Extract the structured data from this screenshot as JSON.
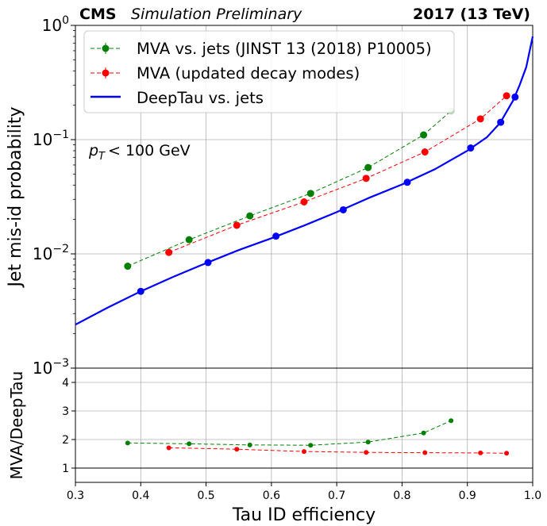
{
  "header": {
    "cms": "CMS",
    "status": "Simulation Preliminary",
    "energy": "2017 (13 TeV)"
  },
  "annotation": {
    "pt_symbol": "p",
    "pt_sub": "T",
    "pt_cut": "< 100 GeV"
  },
  "chart_data": [
    {
      "type": "line",
      "panel": "main",
      "xlabel": "",
      "ylabel": "Jet mis-id probability",
      "xlim": [
        0.3,
        1.0
      ],
      "ylim": [
        0.001,
        1.0
      ],
      "yscale": "log",
      "grid": true,
      "legend_position": "top-left",
      "y_ticks": [
        {
          "value": 1.0,
          "label": "10",
          "exp": "0"
        },
        {
          "value": 0.1,
          "label": "10",
          "exp": "−1"
        },
        {
          "value": 0.01,
          "label": "10",
          "exp": "−2"
        },
        {
          "value": 0.001,
          "label": "10",
          "exp": "−3"
        }
      ],
      "series": [
        {
          "name": "MVA vs. jets (JINST 13 (2018) P10005)",
          "color": "#008000",
          "style": "dashed-markers",
          "x": [
            0.38,
            0.474,
            0.567,
            0.66,
            0.748,
            0.833,
            0.875
          ],
          "y": [
            0.0078,
            0.0133,
            0.0215,
            0.0338,
            0.057,
            0.11,
            0.178
          ]
        },
        {
          "name": "MVA (updated decay modes)",
          "color": "#ff0000",
          "style": "dashed-markers",
          "x": [
            0.443,
            0.547,
            0.65,
            0.745,
            0.835,
            0.92,
            0.96
          ],
          "y": [
            0.0103,
            0.0178,
            0.0285,
            0.0458,
            0.078,
            0.152,
            0.242
          ]
        },
        {
          "name": "DeepTau vs. jets",
          "color": "#0000ff",
          "style": "solid",
          "x": [
            0.3,
            0.35,
            0.4,
            0.45,
            0.5,
            0.55,
            0.6,
            0.65,
            0.7,
            0.75,
            0.8,
            0.85,
            0.9,
            0.93,
            0.95,
            0.97,
            0.98,
            0.99,
            1.0
          ],
          "y": [
            0.0024,
            0.0034,
            0.0047,
            0.0063,
            0.0083,
            0.0108,
            0.0137,
            0.0177,
            0.0232,
            0.031,
            0.0405,
            0.055,
            0.08,
            0.105,
            0.14,
            0.22,
            0.3,
            0.43,
            0.8
          ],
          "markers_x": [
            0.4,
            0.503,
            0.607,
            0.71,
            0.808,
            0.905,
            0.951,
            0.973
          ],
          "markers_y": [
            0.0047,
            0.0084,
            0.0143,
            0.0243,
            0.0423,
            0.0845,
            0.142,
            0.236
          ]
        }
      ]
    },
    {
      "type": "line",
      "panel": "ratio",
      "xlabel": "Tau ID efficiency",
      "ylabel": "MVA/DeepTau",
      "xlim": [
        0.3,
        1.0
      ],
      "ylim": [
        0.5,
        4.5
      ],
      "grid": true,
      "x_ticks": [
        "0.3",
        "0.4",
        "0.5",
        "0.6",
        "0.7",
        "0.8",
        "0.9",
        "1.0"
      ],
      "y_ticks": [
        "1",
        "2",
        "3",
        "4"
      ],
      "reference_line": 1,
      "series": [
        {
          "name": "MVA vs. jets (JINST 13 (2018) P10005)",
          "color": "#008000",
          "x": [
            0.38,
            0.474,
            0.567,
            0.66,
            0.748,
            0.833,
            0.875
          ],
          "y": [
            1.88,
            1.85,
            1.81,
            1.8,
            1.91,
            2.23,
            2.66
          ]
        },
        {
          "name": "MVA (updated decay modes)",
          "color": "#ff0000",
          "x": [
            0.443,
            0.547,
            0.65,
            0.745,
            0.835,
            0.92,
            0.96
          ],
          "y": [
            1.71,
            1.66,
            1.58,
            1.55,
            1.54,
            1.53,
            1.52
          ]
        }
      ]
    }
  ]
}
